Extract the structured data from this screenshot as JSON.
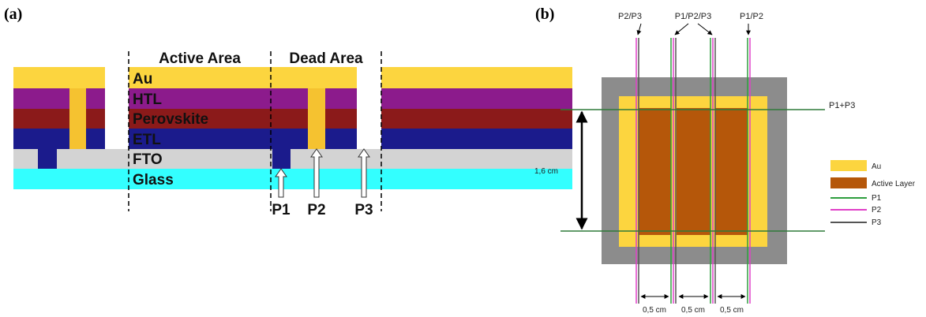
{
  "panel_a": {
    "label": "(a)",
    "regions": [
      "Active Area",
      "Dead Area"
    ],
    "layers": [
      "Au",
      "HTL",
      "Perovskite",
      "ETL",
      "FTO",
      "Glass"
    ],
    "scribes": [
      "P1",
      "P2",
      "P3"
    ]
  },
  "panel_b": {
    "label": "(b)",
    "top_labels": [
      "P2/P3",
      "P1/P2/P3",
      "P1/P2"
    ],
    "side_label": "P1+P3",
    "height_label": "1,6 cm",
    "width_labels": [
      "0,5 cm",
      "0,5 cm",
      "0,5 cm"
    ],
    "legend": [
      "Au",
      "Active Layer",
      "P1",
      "P2",
      "P3"
    ]
  }
}
